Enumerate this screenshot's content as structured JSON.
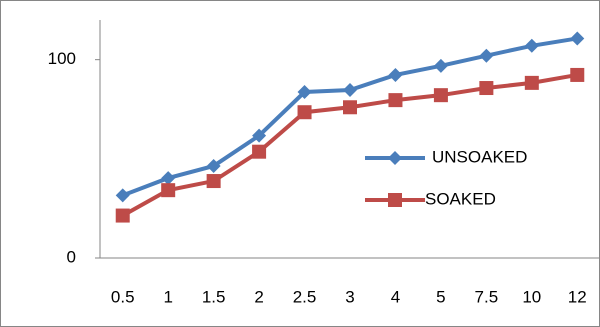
{
  "chart_data": {
    "type": "line",
    "categories": [
      "0.5",
      "1",
      "1.5",
      "2",
      "2.5",
      "3",
      "4",
      "5",
      "7.5",
      "10",
      "12"
    ],
    "series": [
      {
        "name": "UNSOAKED",
        "color": "#4a7ebb",
        "marker": "diamond",
        "values": [
          31.6,
          40.3,
          46.4,
          61.7,
          83.7,
          84.7,
          92.3,
          96.9,
          102,
          107,
          110.7
        ]
      },
      {
        "name": "SOAKED",
        "color": "#be4b48",
        "marker": "square",
        "values": [
          21.4,
          34.2,
          38.8,
          53.6,
          73.5,
          76,
          79.6,
          82.1,
          85.7,
          88.3,
          92.3
        ]
      }
    ],
    "ylim": [
      0,
      120
    ],
    "yticks": [
      0,
      100
    ],
    "grid": false,
    "legend": "right"
  }
}
